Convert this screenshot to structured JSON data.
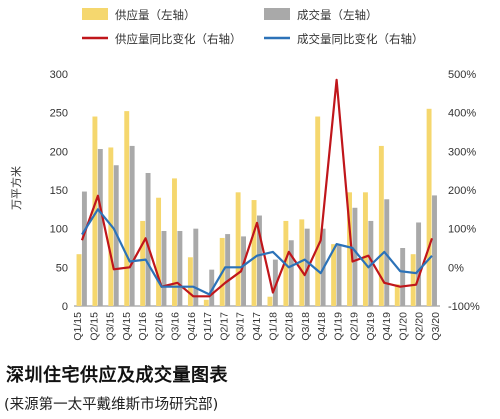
{
  "chart_data": {
    "type": "bar",
    "categories": [
      "Q1/15",
      "Q2/15",
      "Q3/15",
      "Q4/15",
      "Q1/16",
      "Q2/16",
      "Q3/16",
      "Q4/16",
      "Q1/17",
      "Q2/17",
      "Q3/17",
      "Q4/17",
      "Q1/18",
      "Q2/18",
      "Q3/18",
      "Q4/18",
      "Q1/19",
      "Q2/19",
      "Q3/19",
      "Q4/19",
      "Q1/20",
      "Q2/20",
      "Q3/20"
    ],
    "category_labels": [
      "Q1/15",
      "",
      "Q2/15",
      "",
      "Q3/15",
      "",
      "Q4/15",
      "",
      "Q1/16",
      "",
      "Q2/16",
      "",
      "Q3/16",
      "",
      "Q4/16",
      "",
      "Q1/17",
      "",
      "Q2/17",
      "",
      "Q3/17",
      "",
      "Q4/17",
      "",
      "Q1/18",
      "",
      "Q2/18",
      "",
      "Q3/18",
      "",
      "Q4/18",
      "",
      "Q1/19",
      "",
      "Q2/19",
      "",
      "Q3/19",
      "",
      "Q4/19",
      "",
      "Q1/20",
      "",
      "Q2/20",
      "",
      "Q3/20"
    ],
    "series": [
      {
        "name": "供应量（左轴）",
        "axis": "left",
        "kind": "bar",
        "color": "#f5d76e",
        "values": [
          67,
          245,
          205,
          252,
          110,
          140,
          165,
          63,
          8,
          88,
          147,
          137,
          12,
          110,
          112,
          245,
          80,
          147,
          147,
          207,
          28,
          67,
          255
        ]
      },
      {
        "name": "成交量（左轴）",
        "axis": "left",
        "kind": "bar",
        "color": "#a9a9a9",
        "values": [
          148,
          203,
          182,
          207,
          172,
          97,
          97,
          100,
          47,
          93,
          90,
          117,
          60,
          85,
          100,
          100,
          80,
          127,
          110,
          138,
          75,
          108,
          143
        ]
      },
      {
        "name": "供应量同比变化（右轴）",
        "axis": "right",
        "kind": "line",
        "color": "#c0161b",
        "values": [
          70,
          185,
          -5,
          0,
          75,
          -50,
          -40,
          -75,
          -75,
          -40,
          -10,
          115,
          -65,
          40,
          -20,
          70,
          485,
          15,
          30,
          -40,
          -50,
          -45,
          75
        ]
      },
      {
        "name": "成交量同比变化（右轴）",
        "axis": "right",
        "kind": "line",
        "color": "#2c72b8",
        "values": [
          85,
          150,
          100,
          15,
          20,
          -50,
          -50,
          -50,
          -70,
          0,
          0,
          30,
          40,
          0,
          20,
          -15,
          60,
          50,
          0,
          40,
          -10,
          -15,
          30
        ]
      }
    ],
    "y_left": {
      "min": 0,
      "max": 300,
      "ticks": [
        "0",
        "50",
        "100",
        "150",
        "200",
        "250",
        "300"
      ],
      "label": "万平方米"
    },
    "y_right": {
      "min": -100,
      "max": 500,
      "ticks": [
        "-100%",
        "0%",
        "100%",
        "200%",
        "300%",
        "400%",
        "500%"
      ]
    },
    "legend": [
      "供应量（左轴）",
      "成交量（左轴）",
      "供应量同比变化（右轴）",
      "成交量同比变化（右轴）"
    ],
    "legend_position": "top",
    "grid": false
  },
  "caption": "深圳住宅供应及成交量图表",
  "source": "(来源第一太平戴维斯市场研究部)"
}
